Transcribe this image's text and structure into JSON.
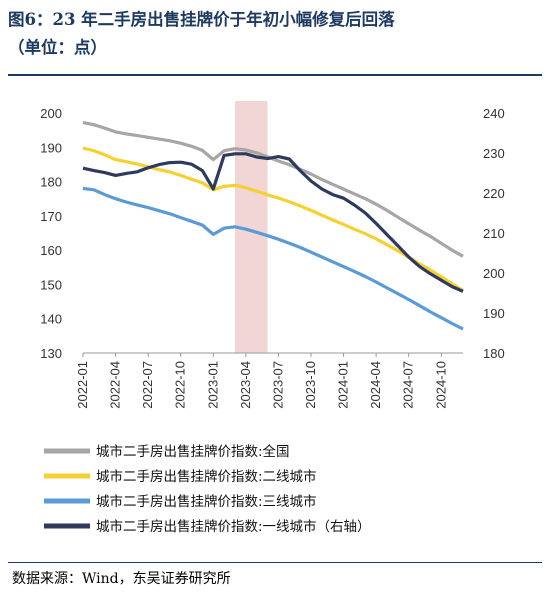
{
  "header": {
    "title_line1": "图6：23 年二手房出售挂牌价于年初小幅修复后回落",
    "title_line2": "（单位：点）"
  },
  "source": "数据来源：Wind，东吴证券研究所",
  "chart_data": {
    "type": "line",
    "x_tick_labels": [
      "2022-01",
      "2022-04",
      "2022-07",
      "2022-10",
      "2023-01",
      "2023-04",
      "2023-07",
      "2023-10",
      "2024-01",
      "2024-04",
      "2024-07",
      "2024-10"
    ],
    "x_range_months": [
      0,
      35
    ],
    "y_left": {
      "range": [
        130,
        200
      ],
      "ticks": [
        130,
        140,
        150,
        160,
        170,
        180,
        190,
        200
      ]
    },
    "y_right": {
      "range": [
        180,
        240
      ],
      "ticks": [
        180,
        190,
        200,
        210,
        220,
        230,
        240
      ]
    },
    "highlight": {
      "from": "2023-03",
      "to": "2023-06",
      "color": "#f2d6d6"
    },
    "legend_position": "bottom",
    "series": [
      {
        "name": "城市二手房出售挂牌价指数:全国",
        "axis": "left",
        "color": "#a6a6a6",
        "points": [
          [
            "2022-01",
            197.2
          ],
          [
            "2022-02",
            196.6
          ],
          [
            "2022-03",
            195.6
          ],
          [
            "2022-04",
            194.5
          ],
          [
            "2022-05",
            193.9
          ],
          [
            "2022-06",
            193.4
          ],
          [
            "2022-07",
            192.9
          ],
          [
            "2022-08",
            192.4
          ],
          [
            "2022-09",
            191.9
          ],
          [
            "2022-10",
            191.2
          ],
          [
            "2022-11",
            190.3
          ],
          [
            "2022-12",
            189.1
          ],
          [
            "2023-01",
            186.4
          ],
          [
            "2023-02",
            189.0
          ],
          [
            "2023-03",
            189.6
          ],
          [
            "2023-04",
            189.2
          ],
          [
            "2023-05",
            188.4
          ],
          [
            "2023-06",
            187.2
          ],
          [
            "2023-07",
            186.0
          ],
          [
            "2023-08",
            184.9
          ],
          [
            "2023-09",
            183.6
          ],
          [
            "2023-10",
            182.2
          ],
          [
            "2023-11",
            180.6
          ],
          [
            "2023-12",
            179.2
          ],
          [
            "2024-01",
            177.8
          ],
          [
            "2024-02",
            176.4
          ],
          [
            "2024-03",
            175.0
          ],
          [
            "2024-04",
            173.4
          ],
          [
            "2024-05",
            171.6
          ],
          [
            "2024-06",
            169.6
          ],
          [
            "2024-07",
            167.7
          ],
          [
            "2024-08",
            165.8
          ],
          [
            "2024-09",
            164.0
          ],
          [
            "2024-10",
            162.0
          ],
          [
            "2024-11",
            160.0
          ],
          [
            "2024-12",
            158.2
          ]
        ]
      },
      {
        "name": "城市二手房出售挂牌价指数:二线城市",
        "axis": "left",
        "color": "#f5d033",
        "points": [
          [
            "2022-01",
            189.8
          ],
          [
            "2022-02",
            189.0
          ],
          [
            "2022-03",
            187.8
          ],
          [
            "2022-04",
            186.4
          ],
          [
            "2022-05",
            185.8
          ],
          [
            "2022-06",
            185.1
          ],
          [
            "2022-07",
            184.3
          ],
          [
            "2022-08",
            183.5
          ],
          [
            "2022-09",
            182.8
          ],
          [
            "2022-10",
            181.8
          ],
          [
            "2022-11",
            180.7
          ],
          [
            "2022-12",
            179.6
          ],
          [
            "2023-01",
            177.6
          ],
          [
            "2023-02",
            178.6
          ],
          [
            "2023-03",
            178.9
          ],
          [
            "2023-04",
            178.2
          ],
          [
            "2023-05",
            177.2
          ],
          [
            "2023-06",
            176.1
          ],
          [
            "2023-07",
            175.2
          ],
          [
            "2023-08",
            174.1
          ],
          [
            "2023-09",
            172.9
          ],
          [
            "2023-10",
            171.6
          ],
          [
            "2023-11",
            170.2
          ],
          [
            "2023-12",
            168.8
          ],
          [
            "2024-01",
            167.5
          ],
          [
            "2024-02",
            166.1
          ],
          [
            "2024-03",
            164.8
          ],
          [
            "2024-04",
            163.3
          ],
          [
            "2024-05",
            161.6
          ],
          [
            "2024-06",
            159.8
          ],
          [
            "2024-07",
            157.9
          ],
          [
            "2024-08",
            156.0
          ],
          [
            "2024-09",
            154.2
          ],
          [
            "2024-10",
            152.2
          ],
          [
            "2024-11",
            150.2
          ],
          [
            "2024-12",
            148.2
          ]
        ]
      },
      {
        "name": "城市二手房出售挂牌价指数:三线城市",
        "axis": "left",
        "color": "#5b9bd5",
        "points": [
          [
            "2022-01",
            178.0
          ],
          [
            "2022-02",
            177.6
          ],
          [
            "2022-03",
            176.2
          ],
          [
            "2022-04",
            175.0
          ],
          [
            "2022-05",
            174.0
          ],
          [
            "2022-06",
            173.2
          ],
          [
            "2022-07",
            172.4
          ],
          [
            "2022-08",
            171.5
          ],
          [
            "2022-09",
            170.6
          ],
          [
            "2022-10",
            169.5
          ],
          [
            "2022-11",
            168.4
          ],
          [
            "2022-12",
            167.3
          ],
          [
            "2023-01",
            164.6
          ],
          [
            "2023-02",
            166.4
          ],
          [
            "2023-03",
            166.8
          ],
          [
            "2023-04",
            166.1
          ],
          [
            "2023-05",
            165.2
          ],
          [
            "2023-06",
            164.2
          ],
          [
            "2023-07",
            163.2
          ],
          [
            "2023-08",
            162.0
          ],
          [
            "2023-09",
            160.8
          ],
          [
            "2023-10",
            159.4
          ],
          [
            "2023-11",
            158.0
          ],
          [
            "2023-12",
            156.6
          ],
          [
            "2024-01",
            155.2
          ],
          [
            "2024-02",
            153.8
          ],
          [
            "2024-03",
            152.3
          ],
          [
            "2024-04",
            150.7
          ],
          [
            "2024-05",
            149.0
          ],
          [
            "2024-06",
            147.3
          ],
          [
            "2024-07",
            145.6
          ],
          [
            "2024-08",
            143.8
          ],
          [
            "2024-09",
            142.0
          ],
          [
            "2024-10",
            140.3
          ],
          [
            "2024-11",
            138.6
          ],
          [
            "2024-12",
            137.0
          ]
        ]
      },
      {
        "name": "城市二手房出售挂牌价指数:一线城市（右轴）",
        "axis": "right",
        "color": "#2e3a5c",
        "points": [
          [
            "2022-01",
            226.2
          ],
          [
            "2022-02",
            225.6
          ],
          [
            "2022-03",
            225.1
          ],
          [
            "2022-04",
            224.4
          ],
          [
            "2022-05",
            224.9
          ],
          [
            "2022-06",
            225.3
          ],
          [
            "2022-07",
            226.3
          ],
          [
            "2022-08",
            227.1
          ],
          [
            "2022-09",
            227.6
          ],
          [
            "2022-10",
            227.7
          ],
          [
            "2022-11",
            227.2
          ],
          [
            "2022-12",
            225.6
          ],
          [
            "2023-01",
            221.0
          ],
          [
            "2023-02",
            229.4
          ],
          [
            "2023-03",
            229.8
          ],
          [
            "2023-04",
            229.8
          ],
          [
            "2023-05",
            229.0
          ],
          [
            "2023-06",
            228.6
          ],
          [
            "2023-07",
            229.1
          ],
          [
            "2023-08",
            228.5
          ],
          [
            "2023-09",
            225.6
          ],
          [
            "2023-10",
            223.0
          ],
          [
            "2023-11",
            221.0
          ],
          [
            "2023-12",
            219.6
          ],
          [
            "2024-01",
            218.7
          ],
          [
            "2024-02",
            217.0
          ],
          [
            "2024-03",
            215.0
          ],
          [
            "2024-04",
            212.4
          ],
          [
            "2024-05",
            209.6
          ],
          [
            "2024-06",
            206.8
          ],
          [
            "2024-07",
            204.0
          ],
          [
            "2024-08",
            201.6
          ],
          [
            "2024-09",
            199.8
          ],
          [
            "2024-10",
            198.2
          ],
          [
            "2024-11",
            196.6
          ],
          [
            "2024-12",
            195.4
          ]
        ]
      }
    ]
  }
}
